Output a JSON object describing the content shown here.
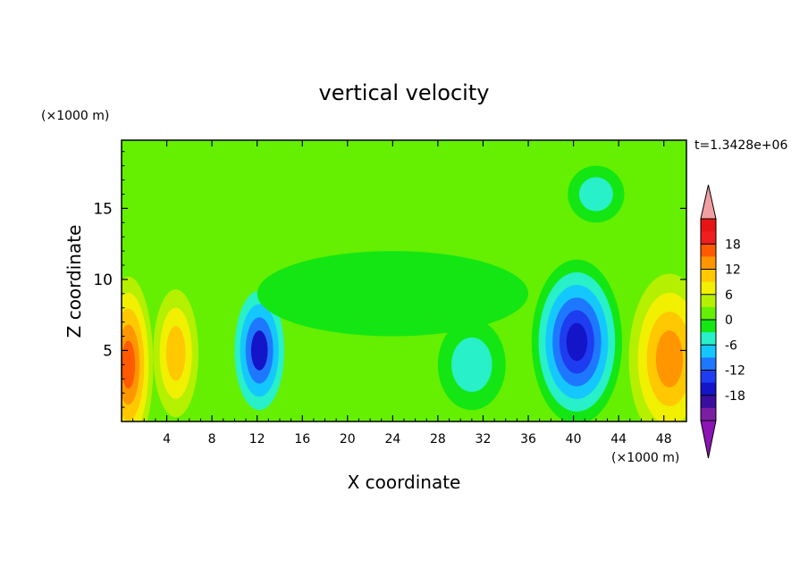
{
  "chart_data": {
    "type": "heatmap",
    "title": "vertical velocity",
    "xlabel": "X coordinate",
    "ylabel": "Z coordinate",
    "x_unit": "(×1000 m)",
    "y_unit": "(×1000 m)",
    "time_label": "t=1.3428e+06",
    "xlim": [
      0,
      50
    ],
    "ylim": [
      0,
      19.8
    ],
    "x_ticks": [
      4,
      8,
      12,
      16,
      20,
      24,
      28,
      32,
      36,
      40,
      44,
      48
    ],
    "y_ticks": [
      5,
      10,
      15
    ],
    "grid": false,
    "colorbar": {
      "levels": [
        -21,
        -18,
        -15,
        -12,
        -9,
        -6,
        -3,
        0,
        3,
        6,
        9,
        12,
        15,
        18,
        21
      ],
      "tick_labels": [
        18,
        12,
        6,
        0,
        -6,
        -12,
        -18
      ],
      "colors": [
        "#7a1fa2",
        "#3a0fa0",
        "#1414c8",
        "#1e3cf0",
        "#1e78ff",
        "#14c8ff",
        "#28f0c8",
        "#14e614",
        "#64f000",
        "#b4f000",
        "#f0f000",
        "#ffc800",
        "#ff9600",
        "#ff5a00",
        "#f01e1e",
        "#e61414"
      ],
      "extend_max_color": "#f0a0a0",
      "extend_min_color": "#8c14b4"
    },
    "features": [
      {
        "x": 0.6,
        "z": 4.0,
        "value": 15
      },
      {
        "x": 4.5,
        "z": 4.5,
        "value": 9
      },
      {
        "x": 12.0,
        "z": 5.0,
        "value": -18
      },
      {
        "x": 40.0,
        "z": 5.5,
        "value": -18
      },
      {
        "x": 48.5,
        "z": 4.2,
        "value": 13
      }
    ]
  }
}
